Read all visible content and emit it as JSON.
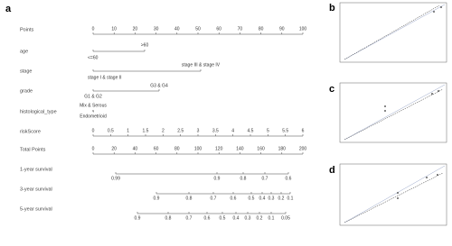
{
  "panels": [
    "a",
    "b",
    "c",
    "d"
  ],
  "nomogram": {
    "rows": [
      {
        "label": "Points",
        "ticks": [
          0,
          10,
          20,
          30,
          40,
          50,
          60,
          70,
          80,
          90,
          100
        ]
      },
      {
        "label": "age",
        "levels": [
          ">60",
          "<=60"
        ]
      },
      {
        "label": "stage",
        "levels": [
          "stage III & stage IV",
          "stage I & stage II"
        ]
      },
      {
        "label": "grade",
        "levels": [
          "G3 & G4",
          "G1 & G2"
        ]
      },
      {
        "label": "histological_type",
        "levels": [
          "Mix & Serous",
          "Endometrioid"
        ]
      },
      {
        "label": "riskScore",
        "ticks": [
          0,
          0.5,
          1,
          1.5,
          2,
          2.5,
          3,
          3.5,
          4,
          4.5,
          5,
          5.5,
          6
        ]
      },
      {
        "label": "Total Points",
        "ticks": [
          0,
          20,
          40,
          60,
          80,
          100,
          120,
          140,
          160,
          180,
          200
        ]
      },
      {
        "label": "1-year survival",
        "ticks": [
          0.99,
          0.9,
          0.8,
          0.7,
          0.6
        ]
      },
      {
        "label": "3-year survival",
        "ticks": [
          0.9,
          0.8,
          0.7,
          0.6,
          0.5,
          0.4,
          0.3,
          0.2,
          0.1
        ]
      },
      {
        "label": "5-year survival",
        "ticks": [
          0.9,
          0.8,
          0.7,
          0.6,
          0.5,
          0.4,
          0.3,
          0.2,
          0.1,
          0.05
        ]
      }
    ]
  }
}
